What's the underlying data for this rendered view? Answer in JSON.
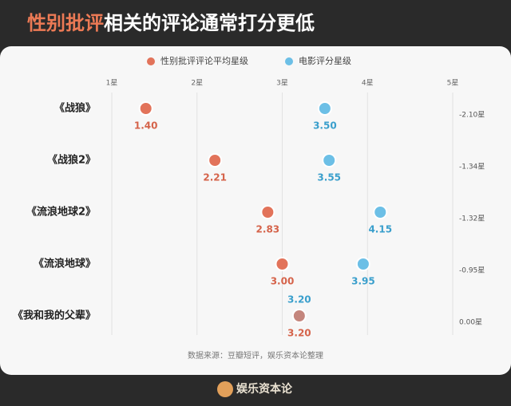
{
  "chart_data": {
    "type": "dot",
    "title_highlight": "性别批评",
    "title": "相关的评论通常打分更低",
    "categories": [
      "《战狼》",
      "《战狼2》",
      "《流浪地球2》",
      "《流浪地球》",
      "《我和我的父辈》"
    ],
    "series": [
      {
        "name": "性别批评评论平均星级",
        "color": "#e2735a",
        "label_color": "#d5634a",
        "values": [
          1.4,
          2.21,
          2.83,
          3.0,
          3.2
        ],
        "value_labels": [
          "1.40",
          "2.21",
          "2.83",
          "3.00",
          "3.20"
        ]
      },
      {
        "name": "电影评分星级",
        "color": "#6cbfe6",
        "label_color": "#3a9fcc",
        "values": [
          3.5,
          3.55,
          4.15,
          3.95,
          3.2
        ],
        "value_labels": [
          "3.50",
          "3.55",
          "4.15",
          "3.95",
          "3.20"
        ]
      }
    ],
    "diff_labels": [
      "-2.10星",
      "-1.34星",
      "-1.32星",
      "-0.95星",
      "0.00星"
    ],
    "xlim": [
      1,
      5
    ],
    "xticks": [
      {
        "value": 1,
        "label": "1星"
      },
      {
        "value": 2,
        "label": "2星"
      },
      {
        "value": 3,
        "label": "3星"
      },
      {
        "value": 4,
        "label": "4星"
      },
      {
        "value": 5,
        "label": "5星"
      }
    ],
    "grid": true,
    "source": "数据来源：豆瓣短评，娱乐资本论整理",
    "footer": "娱乐资本论"
  }
}
